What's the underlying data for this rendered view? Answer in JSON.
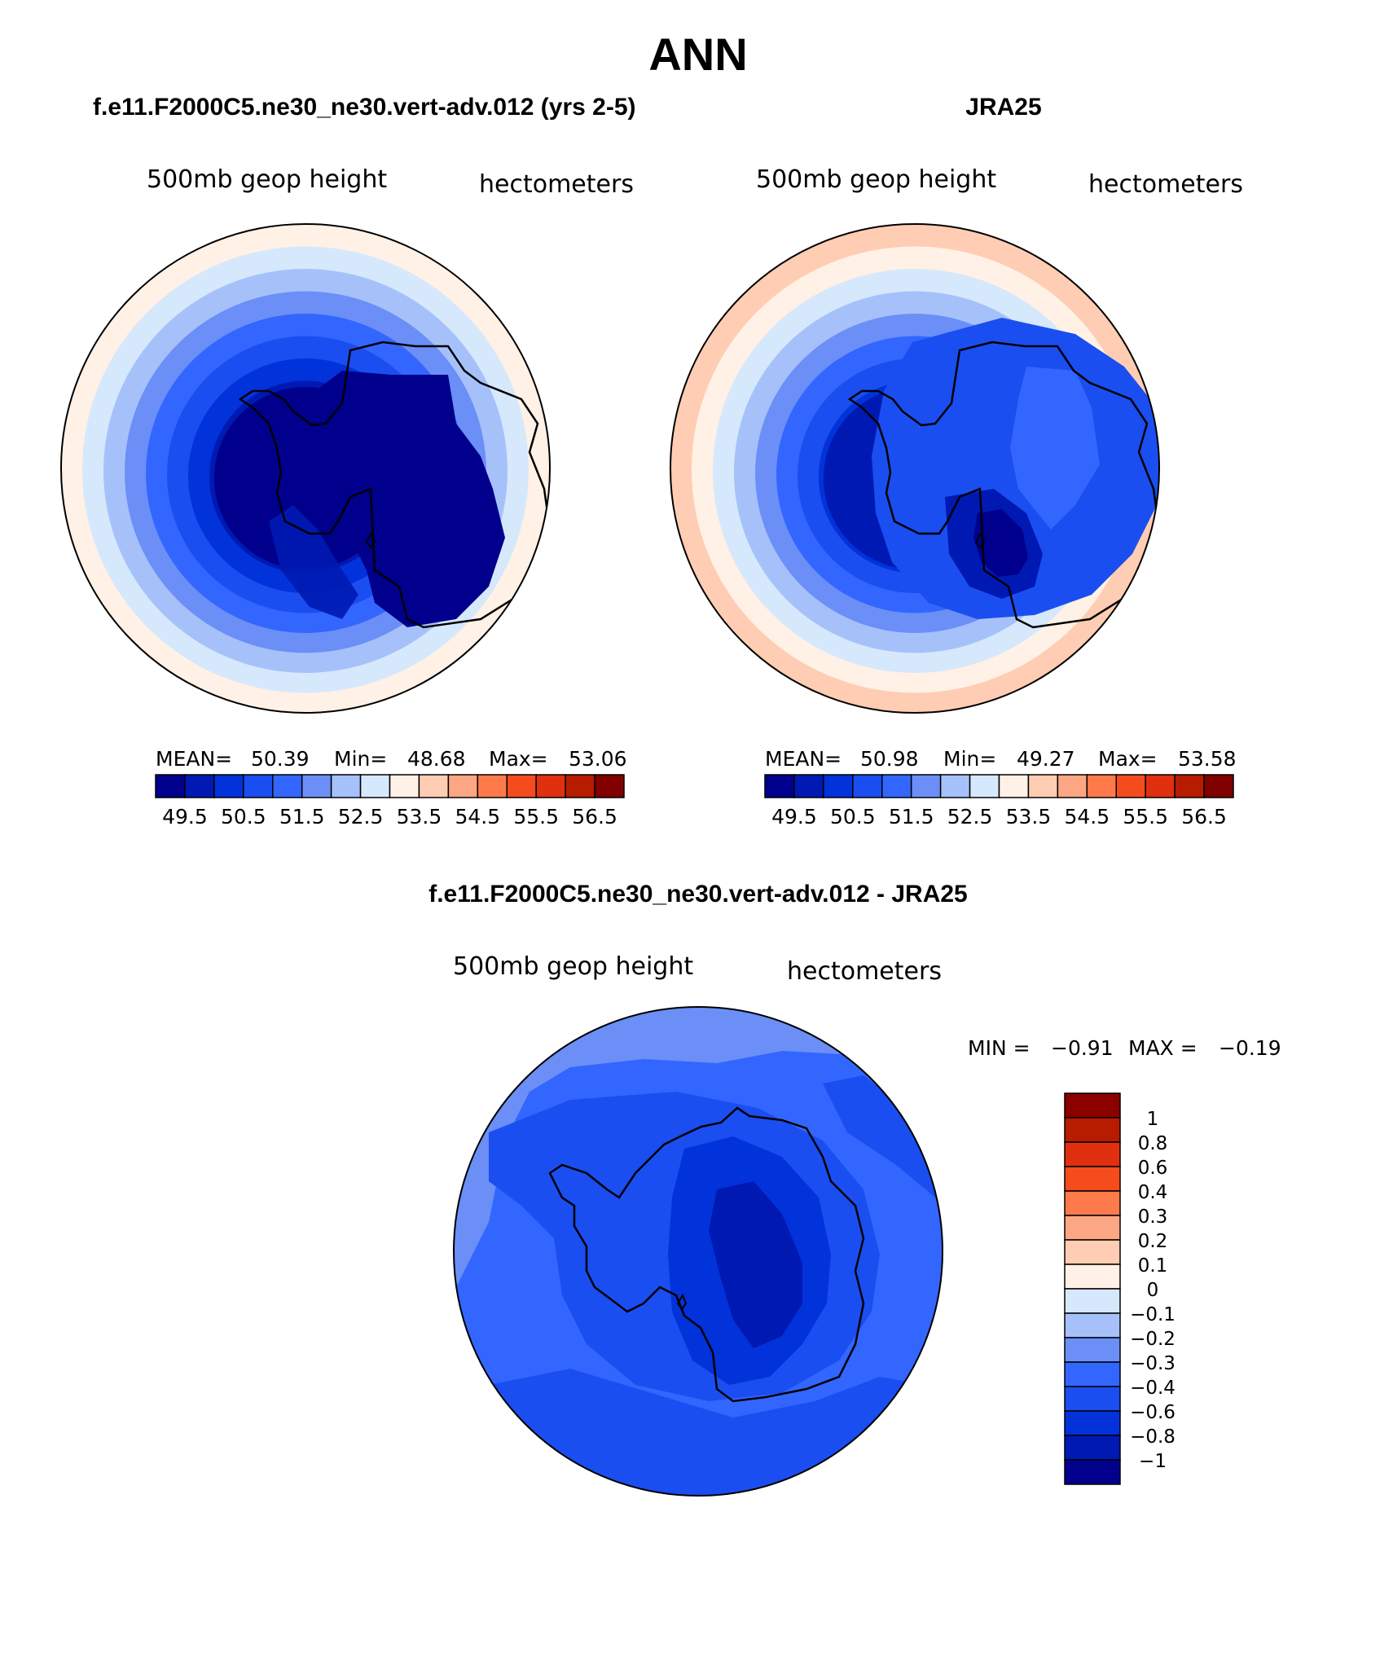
{
  "page_title": "ANN",
  "panels": [
    {
      "title": "f.e11.F2000C5.ne30_ne30.vert-adv.012 (yrs 2-5)",
      "var_label": "500mb  geop  height",
      "units_label": "hectometers",
      "stats": {
        "mean_label": "MEAN=",
        "mean": "50.39",
        "min_label": "Min=",
        "min": "48.68",
        "max_label": "Max=",
        "max": "53.06"
      }
    },
    {
      "title": "JRA25",
      "var_label": "500mb  geop  height",
      "units_label": "hectometers",
      "stats": {
        "mean_label": "MEAN=",
        "mean": "50.98",
        "min_label": "Min=",
        "min": "49.27",
        "max_label": "Max=",
        "max": "53.58"
      }
    },
    {
      "title": "f.e11.F2000C5.ne30_ne30.vert-adv.012 - JRA25",
      "var_label": "500mb  geop  height",
      "units_label": "hectometers",
      "stats": {
        "min_label": "MIN =",
        "min": "−0.91",
        "max_label": "MAX =",
        "max": "−0.19"
      }
    }
  ],
  "colors": {
    "abs_scale": [
      "#00008c",
      "#0019b3",
      "#0232d9",
      "#1a4ef0",
      "#3366ff",
      "#6b8ff7",
      "#a6c1fa",
      "#d6e8fc",
      "#fff1e6",
      "#ffcdb3",
      "#fca684",
      "#ff7a4a",
      "#f54c1d",
      "#e03010",
      "#b81c00",
      "#800000"
    ],
    "diff_scale": [
      "#8c0000",
      "#b81c00",
      "#e03010",
      "#f54c1d",
      "#ff7a4a",
      "#fca684",
      "#ffcdb3",
      "#fff1e6",
      "#d6e8fc",
      "#a6c1fa",
      "#6b8ff7",
      "#3366ff",
      "#1a4ef0",
      "#0232d9",
      "#0019b3",
      "#00008c"
    ]
  },
  "chart_data": [
    {
      "type": "heatmap",
      "title": "f.e11.F2000C5.ne30_ne30.vert-adv.012 (yrs 2-5)",
      "projection": "south polar stereographic",
      "variable": "500mb geop height",
      "units": "hectometers",
      "mean": 50.39,
      "min": 48.68,
      "max": 53.06,
      "contour_levels": [
        49.5,
        50,
        50.5,
        51,
        51.5,
        52,
        52.5,
        53,
        53.5,
        54,
        54.5,
        55,
        55.5,
        56,
        56.5
      ],
      "colorbar_tick_labels": [
        "49.5",
        "50.5",
        "51.5",
        "52.5",
        "53.5",
        "54.5",
        "55.5",
        "56.5"
      ],
      "rings_outer_to_inner": [
        53.25,
        52.75,
        52.25,
        51.75,
        51.25,
        50.75,
        50.25,
        49.75,
        49.0
      ]
    },
    {
      "type": "heatmap",
      "title": "JRA25",
      "projection": "south polar stereographic",
      "variable": "500mb geop height",
      "units": "hectometers",
      "mean": 50.98,
      "min": 49.27,
      "max": 53.58,
      "contour_levels": [
        49.5,
        50,
        50.5,
        51,
        51.5,
        52,
        52.5,
        53,
        53.5,
        54,
        54.5,
        55,
        55.5,
        56,
        56.5
      ],
      "colorbar_tick_labels": [
        "49.5",
        "50.5",
        "51.5",
        "52.5",
        "53.5",
        "54.5",
        "55.5",
        "56.5"
      ],
      "rings_outer_to_inner": [
        53.75,
        53.25,
        52.75,
        52.25,
        51.75,
        51.25,
        50.75,
        50.25,
        49.75
      ]
    },
    {
      "type": "heatmap",
      "title": "f.e11.F2000C5.ne30_ne30.vert-adv.012 - JRA25",
      "projection": "south polar stereographic",
      "variable": "500mb geop height",
      "units": "hectometers",
      "min": -0.91,
      "max": -0.19,
      "contour_levels": [
        1,
        0.8,
        0.6,
        0.4,
        0.3,
        0.2,
        0.1,
        0,
        -0.1,
        -0.2,
        -0.3,
        -0.4,
        -0.6,
        -0.8,
        -1
      ],
      "colorbar_tick_labels": [
        "1",
        "0.8",
        "0.6",
        "0.4",
        "0.3",
        "0.2",
        "0.1",
        "0",
        "−0.1",
        "−0.2",
        "−0.3",
        "−0.4",
        "−0.6",
        "−0.8",
        "−1"
      ]
    }
  ]
}
